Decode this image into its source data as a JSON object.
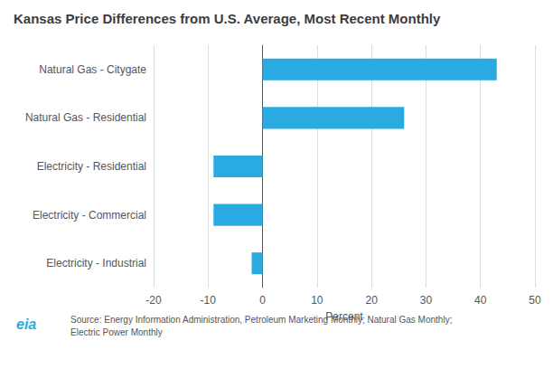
{
  "chart_data": {
    "type": "bar",
    "orientation": "horizontal",
    "title": "Kansas Price Differences from U.S. Average, Most Recent Monthly",
    "categories": [
      "Electricity - Industrial",
      "Electricity - Commercial",
      "Electricity - Residential",
      "Natural Gas - Residential",
      "Natural Gas - Citygate"
    ],
    "values": [
      -2.0,
      -9.0,
      -9.0,
      26.0,
      43.0
    ],
    "color": "#29abe2",
    "xlabel": "Percent",
    "xlim": [
      -20,
      50
    ],
    "xticks": [
      -20,
      -10,
      0,
      10,
      20,
      30,
      40,
      50
    ],
    "grid": true,
    "annotations": [
      "Source: Energy Information Administration, Petroleum Marketing Monthly; Natural Gas Monthly;\nElectric Power Monthly",
      "eia"
    ]
  }
}
